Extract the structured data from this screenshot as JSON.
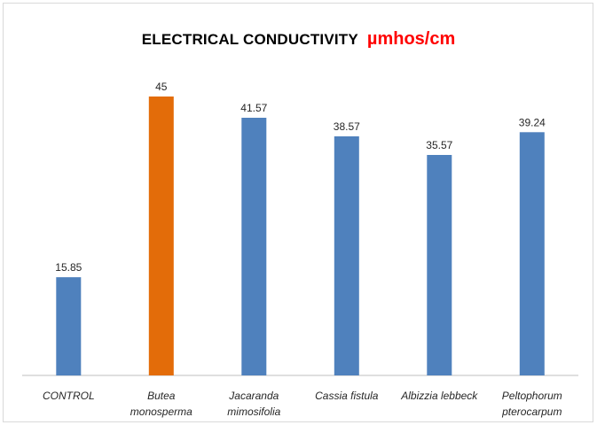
{
  "chart_data": {
    "type": "bar",
    "title": "ELECTRICAL CONDUCTIVITY",
    "title_unit": "µmhos/cm",
    "xlabel": "",
    "ylabel": "",
    "categories": [
      [
        "CONTROL"
      ],
      [
        "Butea",
        "monosperma"
      ],
      [
        "Jacaranda",
        "mimosifolia"
      ],
      [
        "Cassia fistula"
      ],
      [
        "Albizzia lebbeck"
      ],
      [
        "Peltophorum",
        "pterocarpum"
      ]
    ],
    "values": [
      15.85,
      45,
      41.57,
      38.57,
      35.57,
      39.24
    ],
    "value_labels": [
      "15.85",
      "45",
      "41.57",
      "38.57",
      "35.57",
      "39.24"
    ],
    "ylim": [
      0,
      50
    ],
    "grid": false,
    "legend": "none",
    "colors": {
      "bar": "#4f81bd",
      "highlight_bar": "#e36c09",
      "title_unit": "#ff0000",
      "axis": "#bfbfbf"
    },
    "highlight_index": 1
  }
}
